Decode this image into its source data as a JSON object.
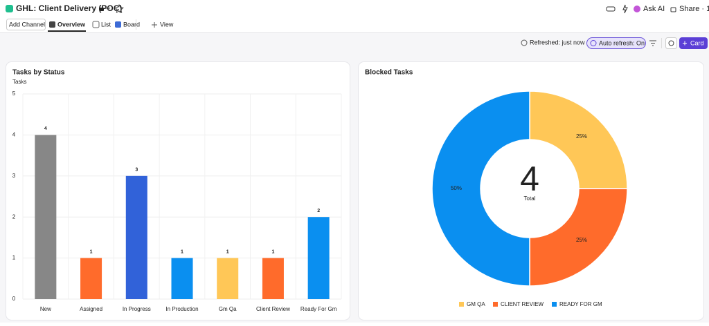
{
  "header": {
    "title": "GHL: Client Delivery (POC)",
    "ask_ai": "Ask AI",
    "share": "Share · 1"
  },
  "tabs": {
    "add_channel": "Add Channel",
    "overview": "Overview",
    "list": "List",
    "board": "Board",
    "view": "View"
  },
  "toolbar": {
    "refreshed": "Refreshed: just now",
    "auto_refresh": "Auto refresh: On",
    "card": "Card"
  },
  "chart_data": [
    {
      "type": "bar",
      "title": "Tasks by Status",
      "y_label": "Tasks",
      "categories": [
        "New",
        "Assigned",
        "In Progress",
        "In Production",
        "Gm Qa",
        "Client Review",
        "Ready For Gm"
      ],
      "values": [
        4,
        1,
        3,
        1,
        1,
        1,
        2
      ],
      "colors": [
        "#878787",
        "#ff6b2b",
        "#3162d9",
        "#0a8ff0",
        "#ffc757",
        "#ff6b2b",
        "#0a8ff0"
      ],
      "ylim": [
        0,
        5
      ],
      "yticks": [
        0,
        1,
        2,
        3,
        4,
        5
      ],
      "grid": true
    },
    {
      "type": "pie",
      "title": "Blocked Tasks",
      "categories": [
        "GM QA",
        "CLIENT REVIEW",
        "READY FOR GM"
      ],
      "values": [
        25,
        25,
        50
      ],
      "value_labels": [
        "25%",
        "25%",
        "50%"
      ],
      "colors": [
        "#ffc757",
        "#ff6b2b",
        "#0a8ff0"
      ],
      "total": 4,
      "total_label": "Total",
      "legend": "bottom"
    }
  ]
}
